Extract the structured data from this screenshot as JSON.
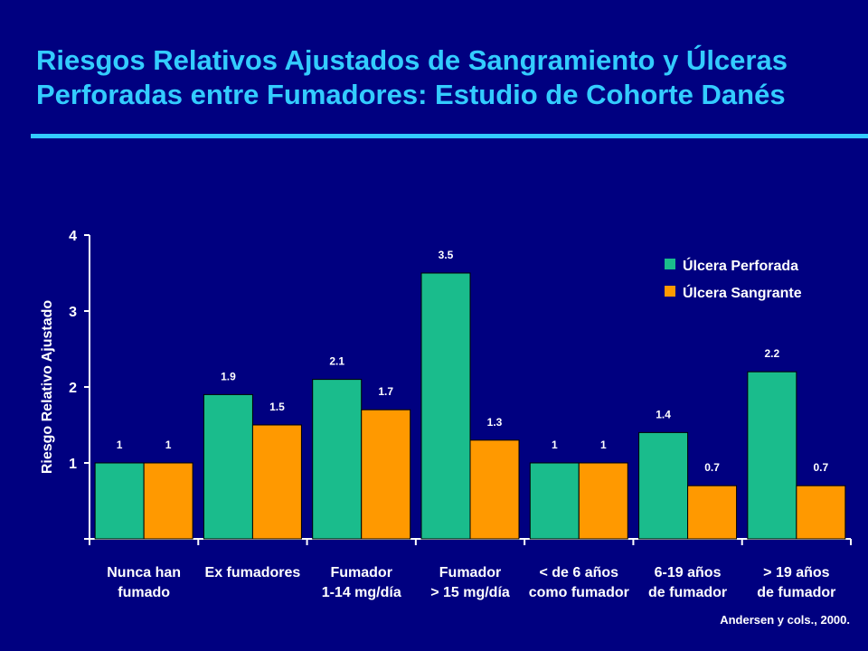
{
  "slide": {
    "title_line1": "Riesgos Relativos Ajustados de Sangramiento y Úlceras",
    "title_line2": "Perforadas entre Fumadores: Estudio de Cohorte Danés",
    "source": "Andersen y cols., 2000."
  },
  "colors": {
    "background": "#000080",
    "title": "#33CCFF",
    "perforada": "#1ABC8C",
    "sangrante": "#FF9900",
    "text": "#FFFFFF"
  },
  "chart_data": {
    "type": "bar",
    "title": "",
    "xlabel": "",
    "ylabel": "Riesgo Relativo Ajustado",
    "ylim": [
      0,
      4
    ],
    "yticks": [
      1,
      2,
      3,
      4
    ],
    "grid": false,
    "legend_position": "top-right",
    "categories": [
      [
        "Nunca han",
        "fumado"
      ],
      [
        "Ex fumadores"
      ],
      [
        "Fumador",
        "1-14 mg/día"
      ],
      [
        "Fumador",
        "> 15 mg/día"
      ],
      [
        "< de 6 años",
        "como fumador"
      ],
      [
        "6-19 años",
        "de fumador"
      ],
      [
        "> 19 años",
        "de fumador"
      ]
    ],
    "series": [
      {
        "name": "Úlcera Perforada",
        "values": [
          1,
          1.9,
          2.1,
          3.5,
          1,
          1.4,
          2.2
        ],
        "labels": [
          "1",
          "1.9",
          "2.1",
          "3.5",
          "1",
          "1.4",
          "2.2"
        ]
      },
      {
        "name": "Úlcera Sangrante",
        "values": [
          1,
          1.5,
          1.7,
          1.3,
          1,
          0.7,
          0.7
        ],
        "labels": [
          "1",
          "1.5",
          "1.7",
          "1.3",
          "1",
          "0.7",
          "0.7"
        ]
      }
    ]
  }
}
